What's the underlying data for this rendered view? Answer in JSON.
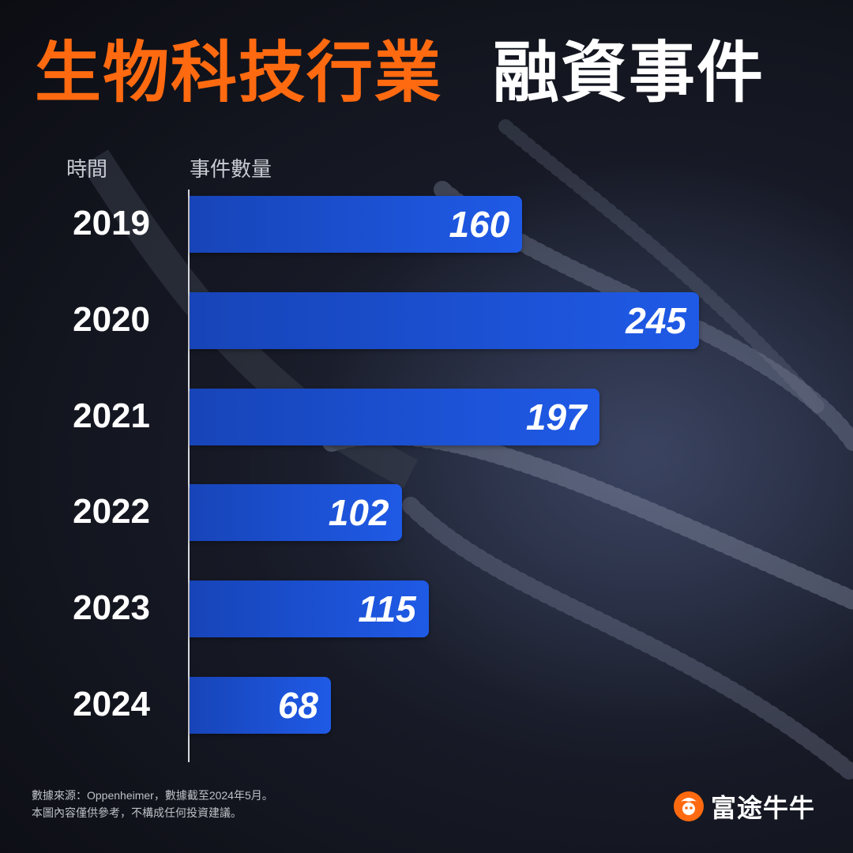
{
  "header": {
    "title_part1": "生物科技行業",
    "title_part2": "融資事件",
    "accent_color": "#ff6a10"
  },
  "columns": {
    "time_label": "時間",
    "count_label": "事件數量"
  },
  "chart_data": {
    "type": "bar",
    "orientation": "horizontal",
    "categories": [
      "2019",
      "2020",
      "2021",
      "2022",
      "2023",
      "2024"
    ],
    "values": [
      160,
      245,
      197,
      102,
      115,
      68
    ],
    "bar_color": "#1f5ae6",
    "xlim": [
      0,
      245
    ],
    "grid": false
  },
  "footer": {
    "source_line": "數據來源：Oppenheimer，數據截至2024年5月。",
    "disclaimer_line": "本圖內容僅供參考，不構成任何投資建議。"
  },
  "brand": {
    "name": "富途牛牛",
    "logo_icon": "futu-logo-icon",
    "logo_color": "#ff6a10"
  }
}
